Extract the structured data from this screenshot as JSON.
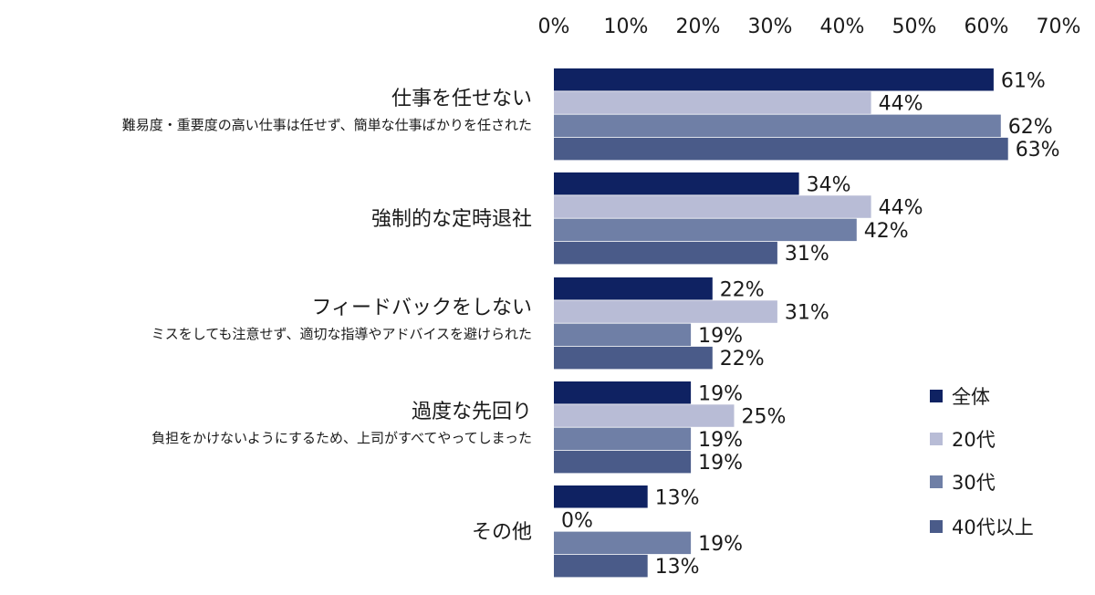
{
  "chart_data": {
    "type": "bar",
    "orientation": "horizontal",
    "x_ticks": [
      "0%",
      "10%",
      "20%",
      "30%",
      "40%",
      "50%",
      "60%",
      "70%"
    ],
    "xlim": [
      0,
      70
    ],
    "grid": false,
    "legend_position": "bottom-right",
    "categories": [
      {
        "title": "仕事を任せない",
        "subtitle": "難易度・重要度の高い仕事は任せず、簡単な仕事ばかりを任された"
      },
      {
        "title": "強制的な定時退社",
        "subtitle": ""
      },
      {
        "title": "フィードバックをしない",
        "subtitle": "ミスをしても注意せず、適切な指導やアドバイスを避けられた"
      },
      {
        "title": "過度な先回り",
        "subtitle": "負担をかけないようにするため、上司がすべてやってしまった"
      },
      {
        "title": "その他",
        "subtitle": ""
      }
    ],
    "series": [
      {
        "name": "全体",
        "color": "#0f2262",
        "values": [
          61,
          34,
          22,
          19,
          13
        ]
      },
      {
        "name": "20代",
        "color": "#b8bcd6",
        "values": [
          44,
          44,
          31,
          25,
          0
        ]
      },
      {
        "name": "30代",
        "color": "#6f7fa6",
        "values": [
          62,
          42,
          19,
          19,
          19
        ]
      },
      {
        "name": "40代以上",
        "color": "#4a5b89",
        "values": [
          63,
          31,
          22,
          19,
          13
        ]
      }
    ],
    "unit": "%"
  }
}
